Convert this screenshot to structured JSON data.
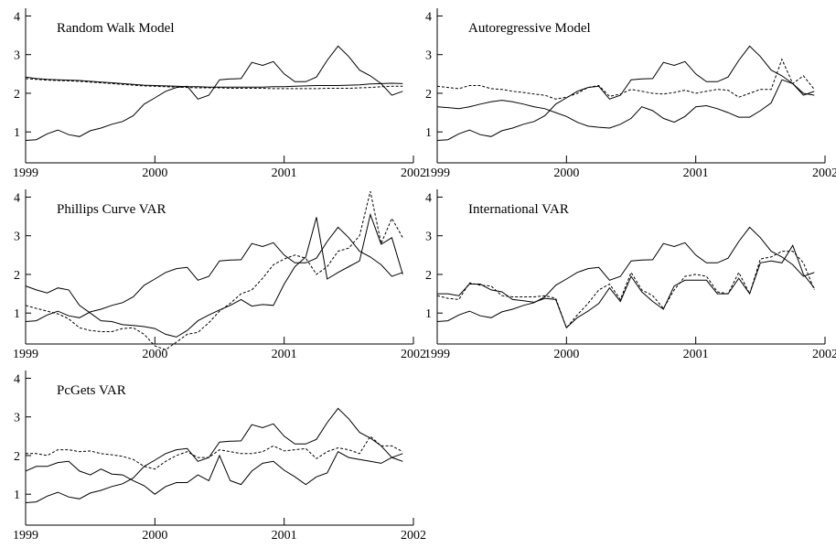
{
  "chart_data": [
    {
      "type": "line",
      "title": "Random Walk Model",
      "x": [
        1999,
        1999.083,
        1999.167,
        1999.25,
        1999.333,
        1999.417,
        1999.5,
        1999.583,
        1999.667,
        1999.75,
        1999.833,
        1999.917,
        2000,
        2000.083,
        2000.167,
        2000.25,
        2000.333,
        2000.417,
        2000.5,
        2000.583,
        2000.667,
        2000.75,
        2000.833,
        2000.917,
        2001,
        2001.083,
        2001.167,
        2001.25,
        2001.333,
        2001.417,
        2001.5,
        2001.583,
        2001.667,
        2001.75,
        2001.833,
        2001.917
      ],
      "xlim": [
        1999,
        2002
      ],
      "xticks": [
        1999,
        2000,
        2001,
        2002
      ],
      "ylim": [
        0.2,
        4.2
      ],
      "yticks": [
        1,
        2,
        3,
        4
      ],
      "series": [
        {
          "color": "#000000",
          "dash": false,
          "values": [
            0.78,
            0.8,
            0.95,
            1.05,
            0.93,
            0.88,
            1.03,
            1.1,
            1.2,
            1.27,
            1.42,
            1.72,
            1.88,
            2.05,
            2.15,
            2.18,
            1.85,
            1.95,
            2.35,
            2.37,
            2.38,
            2.8,
            2.72,
            2.82,
            2.5,
            2.3,
            2.3,
            2.42,
            2.85,
            3.22,
            2.95,
            2.6,
            2.45,
            2.25,
            1.95,
            2.05
          ]
        },
        {
          "color": "#000000",
          "dash": false,
          "values": [
            2.42,
            2.38,
            2.36,
            2.35,
            2.34,
            2.33,
            2.31,
            2.29,
            2.27,
            2.25,
            2.23,
            2.21,
            2.2,
            2.19,
            2.18,
            2.17,
            2.17,
            2.16,
            2.16,
            2.16,
            2.16,
            2.16,
            2.16,
            2.17,
            2.17,
            2.18,
            2.19,
            2.2,
            2.2,
            2.2,
            2.21,
            2.22,
            2.24,
            2.25,
            2.26,
            2.25
          ]
        },
        {
          "color": "#000000",
          "dash": true,
          "values": [
            2.38,
            2.36,
            2.34,
            2.33,
            2.32,
            2.31,
            2.29,
            2.27,
            2.25,
            2.23,
            2.21,
            2.19,
            2.18,
            2.17,
            2.16,
            2.15,
            2.14,
            2.14,
            2.14,
            2.13,
            2.13,
            2.13,
            2.13,
            2.12,
            2.12,
            2.12,
            2.12,
            2.12,
            2.13,
            2.13,
            2.13,
            2.14,
            2.15,
            2.17,
            2.18,
            2.18
          ]
        }
      ]
    },
    {
      "type": "line",
      "title": "Autoregressive Model",
      "x": [
        1999,
        1999.083,
        1999.167,
        1999.25,
        1999.333,
        1999.417,
        1999.5,
        1999.583,
        1999.667,
        1999.75,
        1999.833,
        1999.917,
        2000,
        2000.083,
        2000.167,
        2000.25,
        2000.333,
        2000.417,
        2000.5,
        2000.583,
        2000.667,
        2000.75,
        2000.833,
        2000.917,
        2001,
        2001.083,
        2001.167,
        2001.25,
        2001.333,
        2001.417,
        2001.5,
        2001.583,
        2001.667,
        2001.75,
        2001.833,
        2001.917
      ],
      "xlim": [
        1999,
        2002
      ],
      "xticks": [
        1999,
        2000,
        2001,
        2002
      ],
      "ylim": [
        0.2,
        4.2
      ],
      "yticks": [
        1,
        2,
        3,
        4
      ],
      "series": [
        {
          "color": "#000000",
          "dash": false,
          "values": [
            0.78,
            0.8,
            0.95,
            1.05,
            0.93,
            0.88,
            1.03,
            1.1,
            1.2,
            1.27,
            1.42,
            1.72,
            1.88,
            2.05,
            2.15,
            2.18,
            1.85,
            1.95,
            2.35,
            2.37,
            2.38,
            2.8,
            2.72,
            2.82,
            2.5,
            2.3,
            2.3,
            2.42,
            2.85,
            3.22,
            2.95,
            2.6,
            2.45,
            2.25,
            1.95,
            2.05
          ]
        },
        {
          "color": "#000000",
          "dash": false,
          "values": [
            1.65,
            1.63,
            1.6,
            1.65,
            1.72,
            1.78,
            1.82,
            1.78,
            1.72,
            1.65,
            1.6,
            1.5,
            1.4,
            1.25,
            1.15,
            1.12,
            1.1,
            1.2,
            1.35,
            1.65,
            1.55,
            1.35,
            1.25,
            1.4,
            1.65,
            1.68,
            1.6,
            1.5,
            1.38,
            1.38,
            1.55,
            1.75,
            2.35,
            2.25,
            2.0,
            1.95
          ]
        },
        {
          "color": "#000000",
          "dash": true,
          "values": [
            2.18,
            2.15,
            2.12,
            2.2,
            2.2,
            2.12,
            2.1,
            2.05,
            2.02,
            1.98,
            1.95,
            1.85,
            1.9,
            2.0,
            2.15,
            2.2,
            1.92,
            1.98,
            2.1,
            2.05,
            2.0,
            1.98,
            2.02,
            2.08,
            2.0,
            2.05,
            2.1,
            2.08,
            1.9,
            2.0,
            2.1,
            2.1,
            2.88,
            2.25,
            2.45,
            2.1
          ]
        }
      ]
    },
    {
      "type": "line",
      "title": "Phillips Curve VAR",
      "x": [
        1999,
        1999.083,
        1999.167,
        1999.25,
        1999.333,
        1999.417,
        1999.5,
        1999.583,
        1999.667,
        1999.75,
        1999.833,
        1999.917,
        2000,
        2000.083,
        2000.167,
        2000.25,
        2000.333,
        2000.417,
        2000.5,
        2000.583,
        2000.667,
        2000.75,
        2000.833,
        2000.917,
        2001,
        2001.083,
        2001.167,
        2001.25,
        2001.333,
        2001.417,
        2001.5,
        2001.583,
        2001.667,
        2001.75,
        2001.833,
        2001.917
      ],
      "xlim": [
        1999,
        2002
      ],
      "xticks": [
        1999,
        2000,
        2001,
        2002
      ],
      "ylim": [
        0.2,
        4.2
      ],
      "yticks": [
        1,
        2,
        3,
        4
      ],
      "series": [
        {
          "color": "#000000",
          "dash": false,
          "values": [
            0.78,
            0.8,
            0.95,
            1.05,
            0.93,
            0.88,
            1.03,
            1.1,
            1.2,
            1.27,
            1.42,
            1.72,
            1.88,
            2.05,
            2.15,
            2.18,
            1.85,
            1.95,
            2.35,
            2.37,
            2.38,
            2.8,
            2.72,
            2.82,
            2.5,
            2.3,
            2.3,
            2.42,
            2.85,
            3.22,
            2.95,
            2.6,
            2.45,
            2.25,
            1.95,
            2.05
          ]
        },
        {
          "color": "#000000",
          "dash": false,
          "values": [
            1.7,
            1.6,
            1.52,
            1.65,
            1.6,
            1.2,
            1.0,
            0.8,
            0.78,
            0.7,
            0.68,
            0.65,
            0.6,
            0.45,
            0.38,
            0.55,
            0.8,
            0.95,
            1.08,
            1.2,
            1.35,
            1.18,
            1.22,
            1.2,
            1.75,
            2.2,
            2.45,
            3.48,
            1.88,
            2.05,
            2.2,
            2.35,
            3.55,
            2.78,
            2.95,
            2.0
          ]
        },
        {
          "color": "#000000",
          "dash": true,
          "values": [
            1.2,
            1.12,
            1.05,
            0.98,
            0.85,
            0.62,
            0.55,
            0.52,
            0.52,
            0.6,
            0.62,
            0.45,
            0.15,
            0.05,
            0.25,
            0.45,
            0.5,
            0.75,
            1.05,
            1.25,
            1.5,
            1.6,
            1.9,
            2.25,
            2.4,
            2.5,
            2.42,
            2.0,
            2.2,
            2.6,
            2.68,
            3.0,
            4.15,
            2.8,
            3.45,
            2.95
          ]
        }
      ]
    },
    {
      "type": "line",
      "title": "International VAR",
      "x": [
        1999,
        1999.083,
        1999.167,
        1999.25,
        1999.333,
        1999.417,
        1999.5,
        1999.583,
        1999.667,
        1999.75,
        1999.833,
        1999.917,
        2000,
        2000.083,
        2000.167,
        2000.25,
        2000.333,
        2000.417,
        2000.5,
        2000.583,
        2000.667,
        2000.75,
        2000.833,
        2000.917,
        2001,
        2001.083,
        2001.167,
        2001.25,
        2001.333,
        2001.417,
        2001.5,
        2001.583,
        2001.667,
        2001.75,
        2001.833,
        2001.917
      ],
      "xlim": [
        1999,
        2002
      ],
      "xticks": [
        1999,
        2000,
        2001,
        2002
      ],
      "ylim": [
        0.2,
        4.2
      ],
      "yticks": [
        1,
        2,
        3,
        4
      ],
      "series": [
        {
          "color": "#000000",
          "dash": false,
          "values": [
            0.78,
            0.8,
            0.95,
            1.05,
            0.93,
            0.88,
            1.03,
            1.1,
            1.2,
            1.27,
            1.42,
            1.72,
            1.88,
            2.05,
            2.15,
            2.18,
            1.85,
            1.95,
            2.35,
            2.37,
            2.38,
            2.8,
            2.72,
            2.82,
            2.5,
            2.3,
            2.3,
            2.42,
            2.85,
            3.22,
            2.95,
            2.6,
            2.45,
            2.25,
            1.95,
            2.05
          ]
        },
        {
          "color": "#000000",
          "dash": false,
          "values": [
            1.5,
            1.5,
            1.45,
            1.75,
            1.75,
            1.6,
            1.55,
            1.35,
            1.32,
            1.28,
            1.38,
            1.35,
            0.62,
            0.88,
            1.05,
            1.25,
            1.65,
            1.3,
            1.95,
            1.55,
            1.3,
            1.1,
            1.7,
            1.85,
            1.85,
            1.85,
            1.5,
            1.5,
            1.9,
            1.5,
            2.3,
            2.35,
            2.3,
            2.75,
            2.0,
            1.65
          ]
        },
        {
          "color": "#000000",
          "dash": true,
          "values": [
            1.45,
            1.38,
            1.35,
            1.78,
            1.72,
            1.7,
            1.45,
            1.42,
            1.42,
            1.42,
            1.45,
            1.38,
            0.62,
            0.95,
            1.25,
            1.6,
            1.75,
            1.35,
            2.05,
            1.6,
            1.45,
            1.12,
            1.6,
            1.95,
            2.0,
            1.95,
            1.55,
            1.5,
            2.05,
            1.5,
            2.4,
            2.45,
            2.6,
            2.6,
            2.3,
            1.6
          ]
        }
      ]
    },
    {
      "type": "line",
      "title": "PcGets VAR",
      "x": [
        1999,
        1999.083,
        1999.167,
        1999.25,
        1999.333,
        1999.417,
        1999.5,
        1999.583,
        1999.667,
        1999.75,
        1999.833,
        1999.917,
        2000,
        2000.083,
        2000.167,
        2000.25,
        2000.333,
        2000.417,
        2000.5,
        2000.583,
        2000.667,
        2000.75,
        2000.833,
        2000.917,
        2001,
        2001.083,
        2001.167,
        2001.25,
        2001.333,
        2001.417,
        2001.5,
        2001.583,
        2001.667,
        2001.75,
        2001.833,
        2001.917
      ],
      "xlim": [
        1999,
        2002
      ],
      "xticks": [
        1999,
        2000,
        2001,
        2002
      ],
      "ylim": [
        0.2,
        4.2
      ],
      "yticks": [
        1,
        2,
        3,
        4
      ],
      "series": [
        {
          "color": "#000000",
          "dash": false,
          "values": [
            0.78,
            0.8,
            0.95,
            1.05,
            0.93,
            0.88,
            1.03,
            1.1,
            1.2,
            1.27,
            1.42,
            1.72,
            1.88,
            2.05,
            2.15,
            2.18,
            1.85,
            1.95,
            2.35,
            2.37,
            2.38,
            2.8,
            2.72,
            2.82,
            2.5,
            2.3,
            2.3,
            2.42,
            2.85,
            3.22,
            2.95,
            2.6,
            2.45,
            2.25,
            1.95,
            2.05
          ]
        },
        {
          "color": "#000000",
          "dash": false,
          "values": [
            1.6,
            1.72,
            1.72,
            1.82,
            1.85,
            1.6,
            1.5,
            1.65,
            1.52,
            1.5,
            1.35,
            1.22,
            1.0,
            1.2,
            1.3,
            1.3,
            1.5,
            1.35,
            2.0,
            1.35,
            1.25,
            1.6,
            1.8,
            1.85,
            1.62,
            1.45,
            1.25,
            1.45,
            1.55,
            2.1,
            1.95,
            1.9,
            1.85,
            1.8,
            1.95,
            1.85
          ]
        },
        {
          "color": "#000000",
          "dash": true,
          "values": [
            2.05,
            2.05,
            2.0,
            2.15,
            2.15,
            2.1,
            2.12,
            2.05,
            2.02,
            1.98,
            1.9,
            1.72,
            1.65,
            1.85,
            2.0,
            2.1,
            1.95,
            1.95,
            2.15,
            2.1,
            2.05,
            2.05,
            2.1,
            2.25,
            2.12,
            2.15,
            2.18,
            1.92,
            2.1,
            2.2,
            2.15,
            2.05,
            2.5,
            2.25,
            2.25,
            2.1
          ]
        }
      ]
    }
  ]
}
